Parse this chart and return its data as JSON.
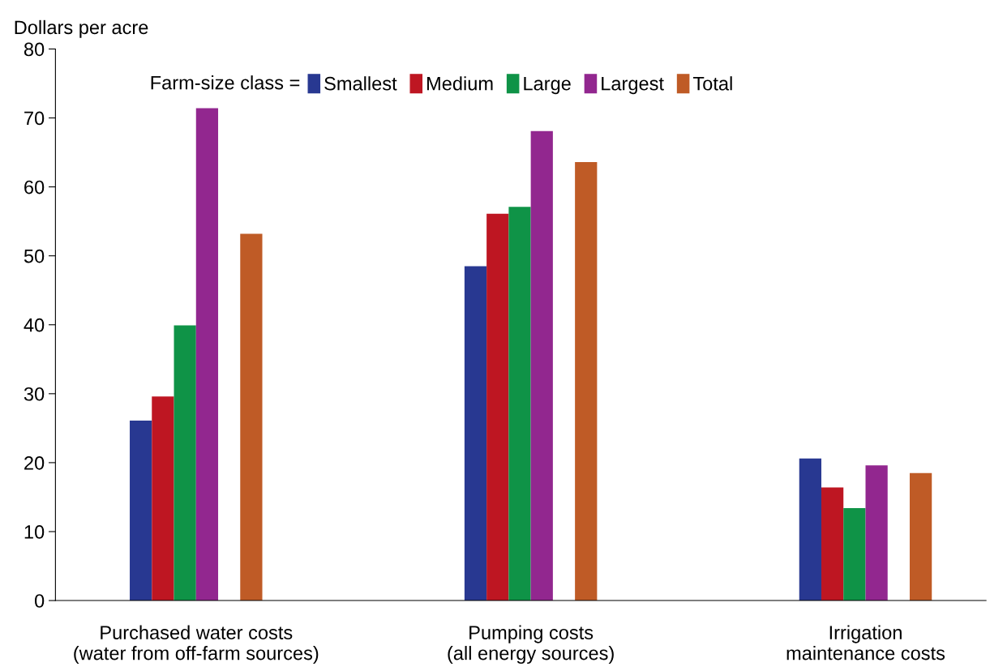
{
  "chart_data": {
    "type": "bar",
    "ylabel": "Dollars per acre",
    "legend_title": "Farm-size class =",
    "legend": "top",
    "grid": false,
    "categories": [
      "Purchased water costs\n(water from off-farm sources)",
      "Pumping costs\n(all energy sources)",
      "Irrigation\nmaintenance costs"
    ],
    "ylim": [
      0,
      80
    ],
    "yticks": [
      0,
      10,
      20,
      30,
      40,
      50,
      60,
      70,
      80
    ],
    "series": [
      {
        "name": "Smallest",
        "color": "#283891",
        "values": [
          26.1,
          48.5,
          20.6
        ]
      },
      {
        "name": "Medium",
        "color": "#be1622",
        "values": [
          29.6,
          56.1,
          16.4
        ]
      },
      {
        "name": "Large",
        "color": "#0f9347",
        "values": [
          39.9,
          57.1,
          13.4
        ]
      },
      {
        "name": "Largest",
        "color": "#92278f",
        "values": [
          71.4,
          68.1,
          19.6
        ]
      },
      {
        "name": "Total",
        "color": "#bf5b26",
        "values": [
          53.2,
          63.6,
          18.5
        ]
      }
    ]
  }
}
